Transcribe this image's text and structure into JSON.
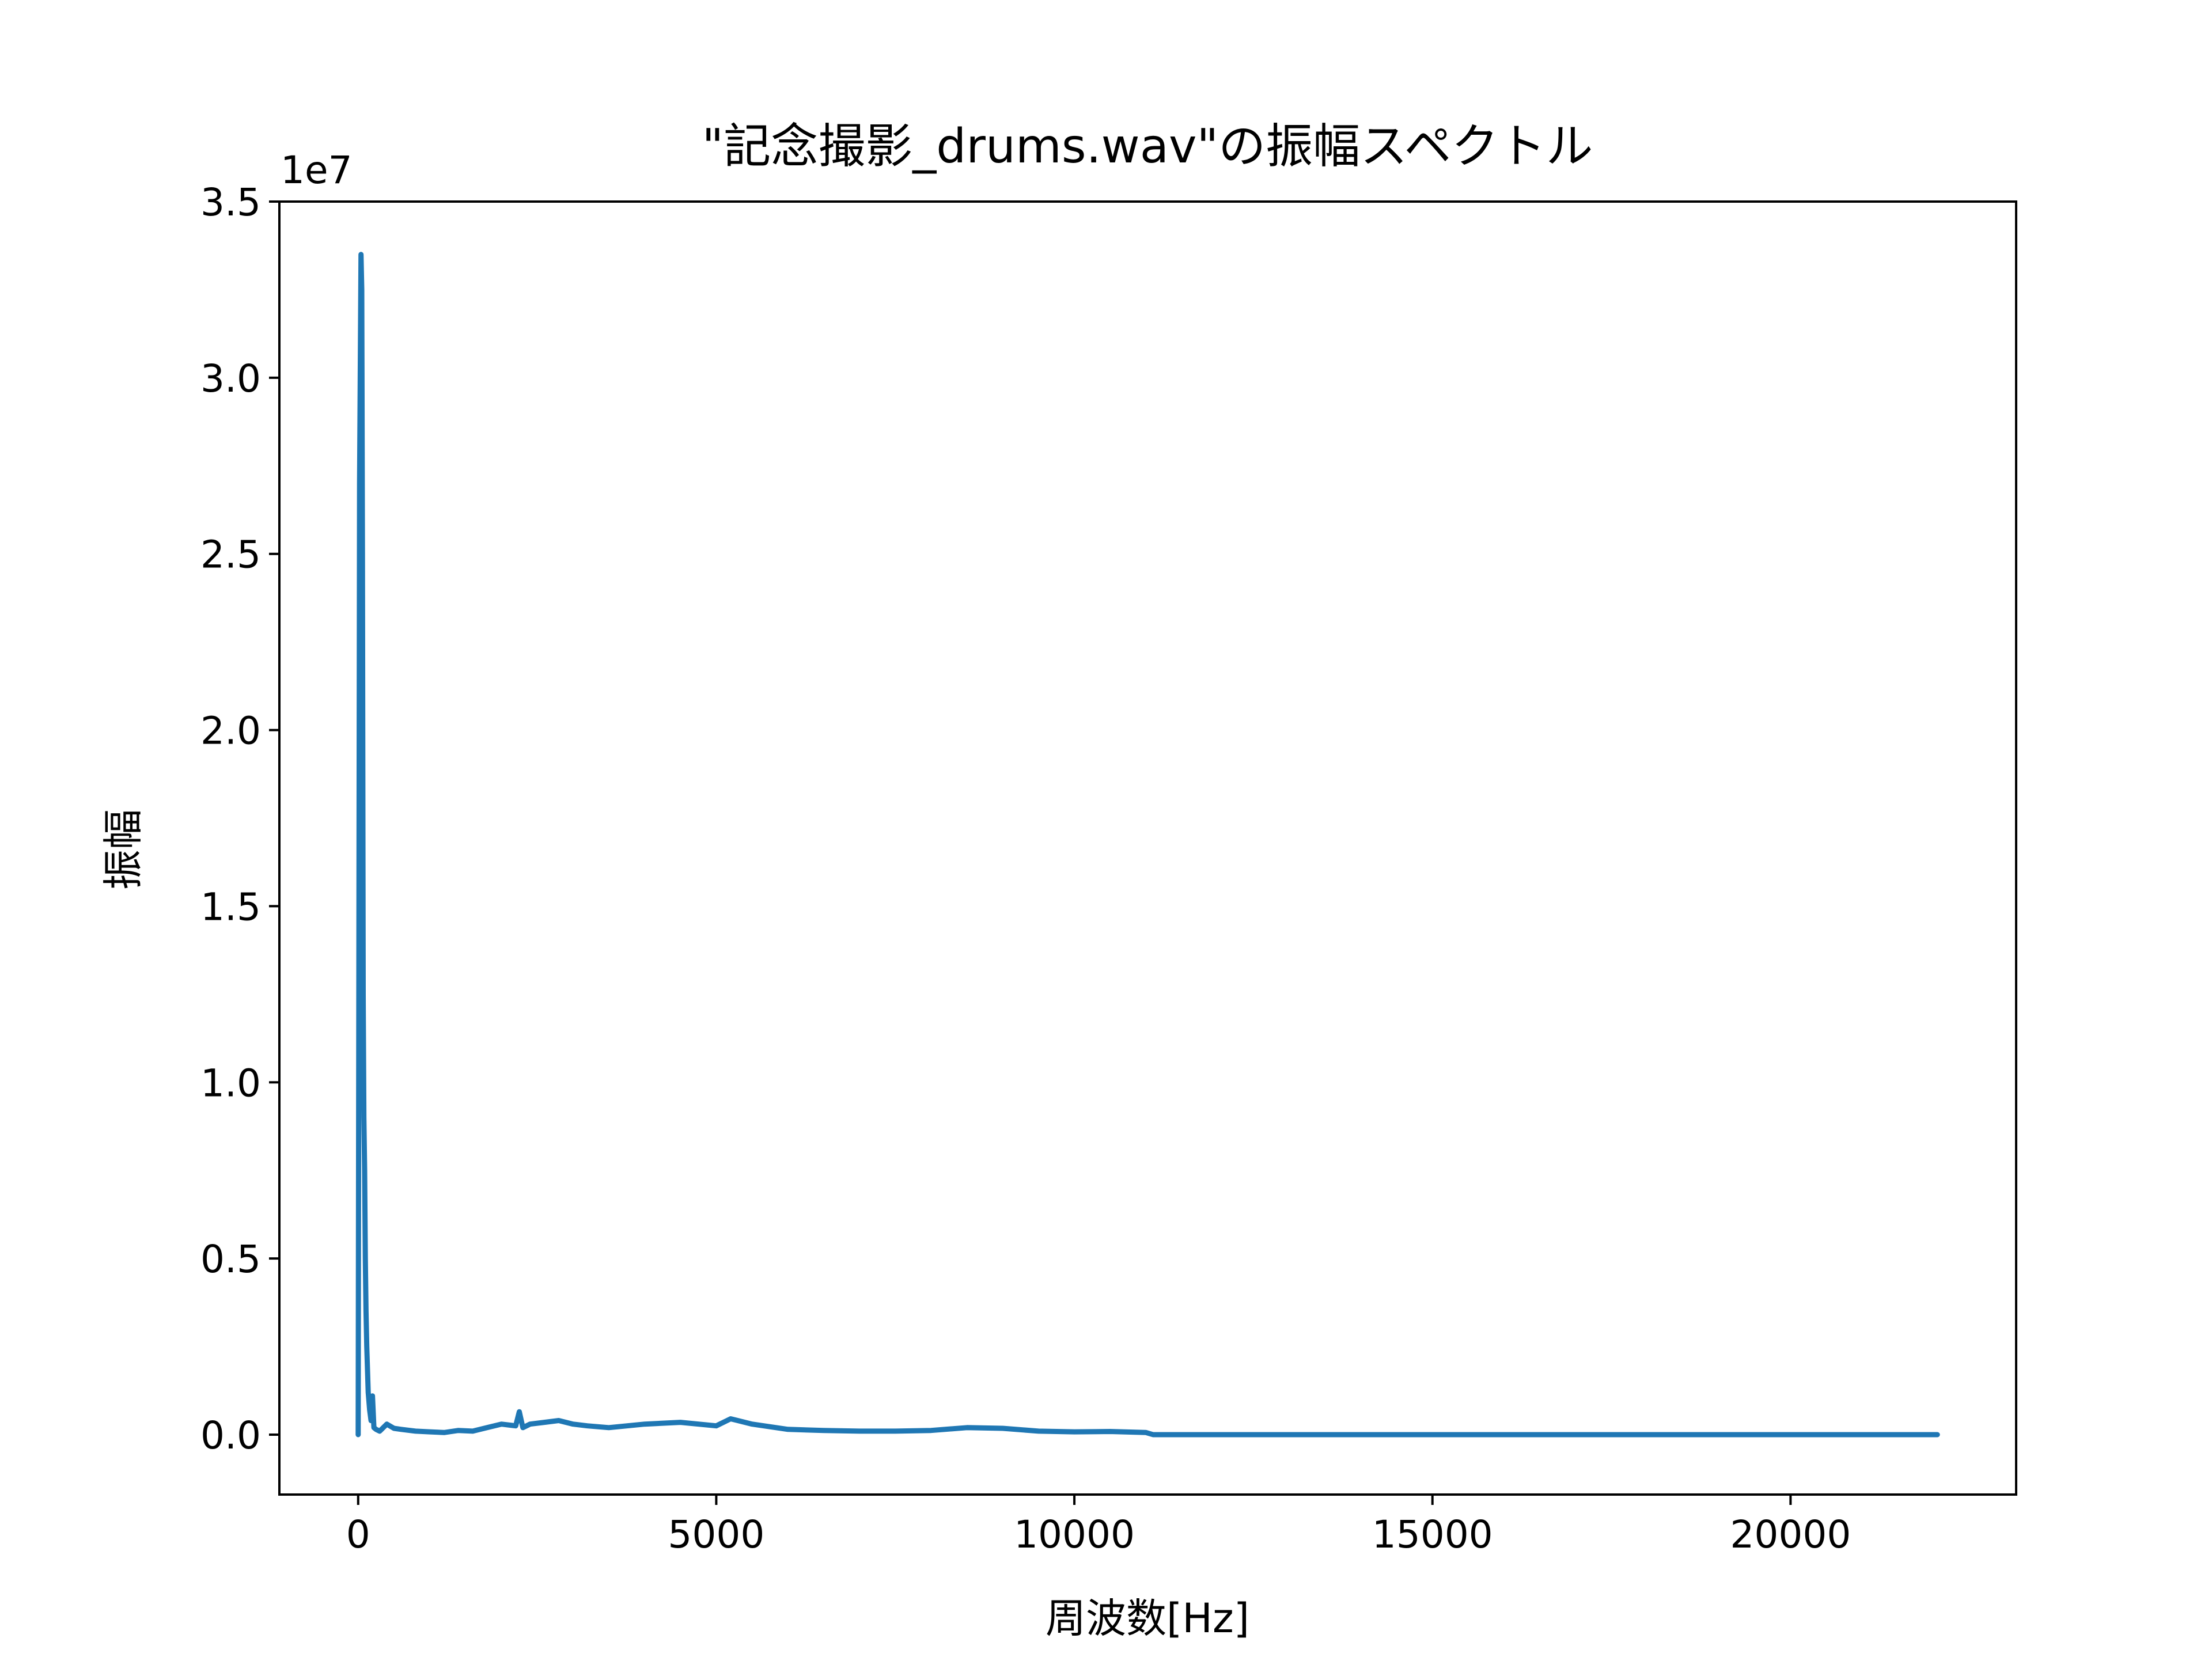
{
  "chart_data": {
    "type": "line",
    "title": "\"記念撮影_drums.wav\"の振幅スペクトル",
    "xlabel": "周波数[Hz]",
    "ylabel": "振幅",
    "y_offset_label": "1e7",
    "xlim": [
      -1100,
      23150
    ],
    "ylim": [
      -1700000,
      35000000
    ],
    "x_ticks": [
      0,
      5000,
      10000,
      15000,
      20000
    ],
    "x_tick_labels": [
      "0",
      "5000",
      "10000",
      "15000",
      "20000"
    ],
    "y_ticks": [
      0,
      5000000,
      10000000,
      15000000,
      20000000,
      25000000,
      30000000,
      35000000
    ],
    "y_tick_labels": [
      "0.0",
      "0.5",
      "1.0",
      "1.5",
      "2.0",
      "2.5",
      "3.0",
      "3.5"
    ],
    "grid": false,
    "legend": "none",
    "series": [
      {
        "color": "#1f77b4",
        "x": [
          0,
          20,
          40,
          50,
          60,
          70,
          80,
          90,
          100,
          110,
          120,
          140,
          160,
          180,
          200,
          220,
          250,
          300,
          400,
          500,
          600,
          800,
          1000,
          1200,
          1400,
          1600,
          1800,
          2000,
          2200,
          2250,
          2300,
          2400,
          2600,
          2800,
          3000,
          3200,
          3500,
          4000,
          4500,
          5000,
          5200,
          5300,
          5500,
          6000,
          6500,
          7000,
          7500,
          8000,
          8500,
          9000,
          9500,
          10000,
          10500,
          11000,
          11100,
          12000,
          14000,
          16000,
          18000,
          20000,
          22050
        ],
        "y": [
          0,
          27000000,
          33500000,
          32500000,
          25000000,
          12500000,
          9000000,
          7500000,
          5000000,
          3500000,
          2500000,
          1200000,
          700000,
          400000,
          1100000,
          200000,
          150000,
          100000,
          300000,
          180000,
          150000,
          100000,
          80000,
          60000,
          120000,
          100000,
          200000,
          300000,
          250000,
          650000,
          200000,
          300000,
          350000,
          400000,
          300000,
          250000,
          200000,
          300000,
          350000,
          250000,
          450000,
          400000,
          300000,
          150000,
          120000,
          100000,
          100000,
          120000,
          200000,
          180000,
          100000,
          80000,
          90000,
          60000,
          0,
          0,
          0,
          0,
          0,
          0,
          0
        ]
      }
    ]
  }
}
